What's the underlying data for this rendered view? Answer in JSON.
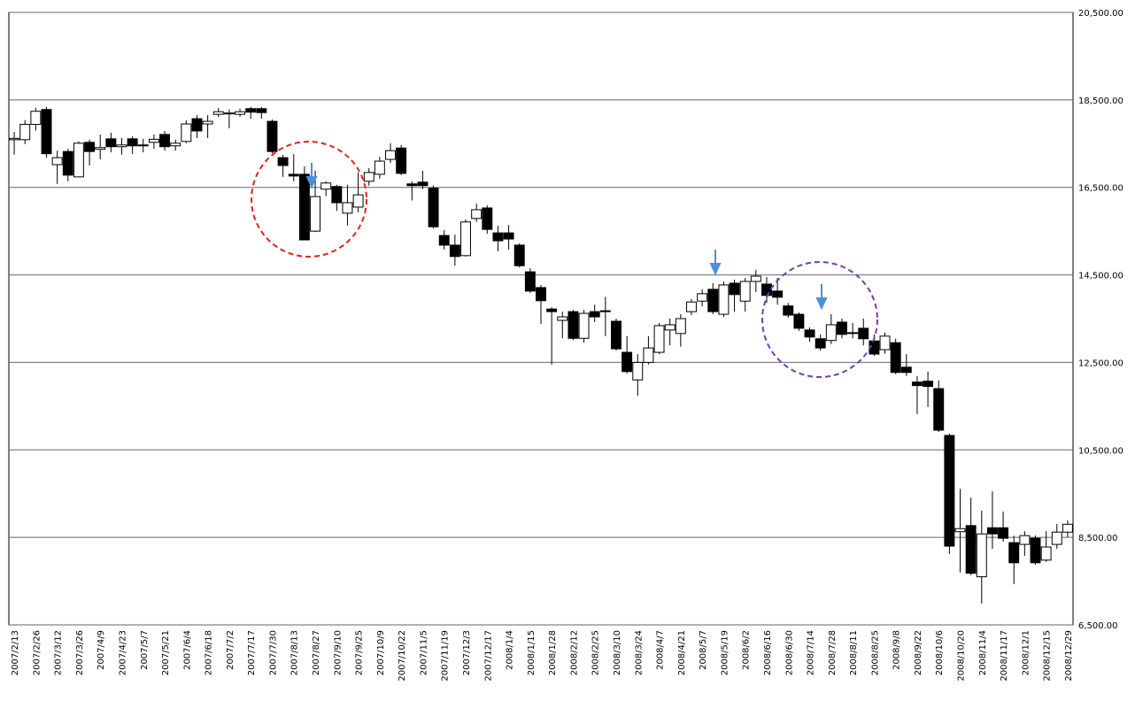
{
  "chart_data": {
    "type": "candlestick",
    "categories": [
      "2007/2/13",
      null,
      "2007/2/26",
      null,
      "2007/3/12",
      null,
      "2007/3/26",
      null,
      "2007/4/9",
      null,
      "2007/4/23",
      null,
      "2007/5/7",
      null,
      "2007/5/21",
      null,
      "2007/6/4",
      null,
      "2007/6/18",
      null,
      "2007/7/2",
      null,
      "2007/7/17",
      null,
      "2007/7/30",
      null,
      "2007/8/13",
      null,
      "2007/8/27",
      null,
      "2007/9/10",
      null,
      "2007/9/25",
      null,
      "2007/10/9",
      null,
      "2007/10/22",
      null,
      "2007/11/5",
      null,
      "2007/11/19",
      null,
      "2007/12/3",
      null,
      "2007/12/17",
      null,
      "2008/1/4",
      null,
      "2008/1/15",
      null,
      "2008/1/28",
      null,
      "2008/2/12",
      null,
      "2008/2/25",
      null,
      "2008/3/10",
      null,
      "2008/3/24",
      null,
      "2008/4/7",
      null,
      "2008/4/21",
      null,
      "2008/5/7",
      null,
      "2008/5/19",
      null,
      "2008/6/2",
      null,
      "2008/6/16",
      null,
      "2008/6/30",
      null,
      "2008/7/14",
      null,
      "2008/7/28",
      null,
      "2008/8/11",
      null,
      "2008/8/25",
      null,
      "2008/9/8",
      null,
      "2008/9/22",
      null,
      "2008/10/6",
      null,
      "2008/10/20",
      null,
      "2008/11/4",
      null,
      "2008/11/17",
      null,
      "2008/12/1",
      null,
      "2008/12/15",
      null,
      "2008/12/29"
    ],
    "open": [
      17590,
      17590,
      17940,
      18280,
      17020,
      17320,
      16740,
      17530,
      17370,
      17610,
      17430,
      17610,
      17450,
      17530,
      17710,
      17450,
      17550,
      18070,
      17950,
      18170,
      18180,
      18170,
      18300,
      18300,
      18010,
      17180,
      16800,
      16800,
      15500,
      16460,
      16520,
      15910,
      16050,
      16640,
      16800,
      17140,
      17400,
      16580,
      16620,
      16480,
      15400,
      15180,
      14940,
      15790,
      16030,
      15460,
      15460,
      15180,
      14570,
      14210,
      13720,
      13460,
      13660,
      13050,
      13660,
      13660,
      13440,
      12730,
      12100,
      12500,
      12730,
      13240,
      13160,
      13660,
      13900,
      14170,
      13600,
      14310,
      13900,
      14350,
      14290,
      14130,
      13790,
      13600,
      13240,
      13040,
      13000,
      13420,
      13180,
      13280,
      12990,
      12790,
      12950,
      12390,
      12050,
      12070,
      11900,
      10830,
      8630,
      8770,
      7600,
      8720,
      8720,
      8380,
      8340,
      8480,
      7980,
      8340,
      8620
    ],
    "high": [
      17770,
      18040,
      18320,
      18340,
      17340,
      17380,
      17550,
      17590,
      17710,
      17750,
      17630,
      17670,
      17610,
      17710,
      17790,
      17590,
      18030,
      18150,
      18150,
      18320,
      18280,
      18300,
      18340,
      18340,
      18050,
      17240,
      17260,
      16980,
      16880,
      16640,
      16560,
      16560,
      16840,
      16940,
      17200,
      17510,
      17470,
      16640,
      16880,
      16540,
      15520,
      15420,
      15770,
      16130,
      16090,
      15620,
      15640,
      15220,
      14650,
      14270,
      13760,
      13660,
      13700,
      13700,
      13820,
      14000,
      13500,
      13100,
      12690,
      13100,
      13400,
      13500,
      13600,
      13950,
      14170,
      14310,
      14350,
      14390,
      14430,
      14610,
      14450,
      14430,
      13860,
      13640,
      13300,
      13140,
      13600,
      13500,
      13400,
      13500,
      13140,
      13180,
      13040,
      12690,
      12190,
      12290,
      12090,
      10870,
      9610,
      9410,
      9110,
      9550,
      9090,
      8540,
      8640,
      8540,
      8640,
      8810,
      8890
    ],
    "low": [
      17250,
      17490,
      17800,
      17180,
      16580,
      16640,
      16740,
      17000,
      17140,
      17300,
      17250,
      17260,
      17300,
      17380,
      17340,
      17340,
      17510,
      17630,
      17630,
      18110,
      17850,
      18110,
      18070,
      18070,
      17280,
      16740,
      16640,
      15300,
      15480,
      16300,
      15960,
      15630,
      15930,
      16540,
      16700,
      17060,
      16780,
      16200,
      16460,
      15560,
      15080,
      14710,
      14920,
      15710,
      15440,
      15040,
      15080,
      14670,
      14090,
      13380,
      12450,
      13050,
      13010,
      12950,
      13420,
      13100,
      12770,
      12250,
      11740,
      12450,
      12690,
      12890,
      12860,
      13580,
      13780,
      13600,
      13540,
      13660,
      13660,
      14110,
      13860,
      13820,
      13520,
      13220,
      12970,
      12770,
      12920,
      13050,
      13050,
      12890,
      12650,
      12700,
      12230,
      12190,
      11320,
      11480,
      10910,
      8120,
      7700,
      7640,
      6990,
      8240,
      8400,
      7430,
      8080,
      7880,
      7940,
      8240,
      8500
    ],
    "close": [
      17620,
      17940,
      18240,
      17270,
      17180,
      16780,
      17510,
      17320,
      17410,
      17430,
      17470,
      17450,
      17470,
      17600,
      17430,
      17510,
      17950,
      17790,
      18010,
      18230,
      18200,
      18230,
      18220,
      18210,
      17320,
      17000,
      16760,
      15300,
      16290,
      16600,
      16150,
      16150,
      16330,
      16840,
      17100,
      17340,
      16820,
      16540,
      16540,
      15600,
      15180,
      14920,
      15710,
      15990,
      15540,
      15280,
      15320,
      14710,
      14130,
      13910,
      13660,
      13540,
      13050,
      13620,
      13540,
      13680,
      12810,
      12290,
      12500,
      12830,
      13340,
      13360,
      13500,
      13880,
      14070,
      13660,
      14270,
      14050,
      14350,
      14470,
      14030,
      13990,
      13580,
      13280,
      13080,
      12830,
      13360,
      13140,
      13160,
      13040,
      12690,
      13100,
      12270,
      12270,
      11970,
      11950,
      10950,
      8300,
      8700,
      7680,
      8580,
      8580,
      8480,
      7920,
      8540,
      7920,
      8280,
      8620,
      8800
    ],
    "ylim": [
      6500,
      20500
    ],
    "yticks": [
      {
        "value": 6500,
        "label": "6,500.00"
      },
      {
        "value": 8500,
        "label": "8,500.00"
      },
      {
        "value": 10500,
        "label": "10,500.00"
      },
      {
        "value": 12500,
        "label": "12,500.00"
      },
      {
        "value": 14500,
        "label": "14,500.00"
      },
      {
        "value": 16500,
        "label": "16,500.00"
      },
      {
        "value": 18500,
        "label": "18,500.00"
      },
      {
        "value": 20500,
        "label": "20,500.00"
      }
    ],
    "grid": true,
    "up_color": "#ffffff",
    "down_color": "#000000"
  }
}
